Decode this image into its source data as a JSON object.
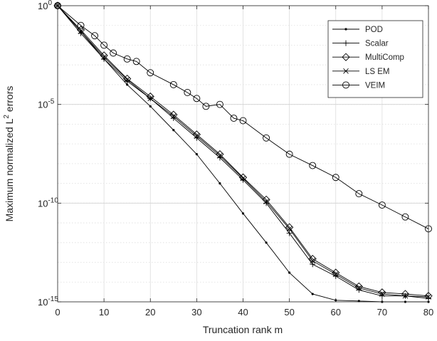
{
  "chart_data": {
    "type": "line",
    "xlabel": "Truncation rank m",
    "ylabel": "Maximum normalized L² errors",
    "ylabel_parts": {
      "pre": "Maximum normalized L",
      "sup": "2",
      "post": " errors"
    },
    "x_range": [
      0,
      80
    ],
    "y_range": [
      1e-15,
      1
    ],
    "y_scale": "log",
    "grid": true,
    "legend_position": "top-right",
    "x_ticks": [
      0,
      10,
      20,
      30,
      40,
      50,
      60,
      70,
      80
    ],
    "x_tick_labels": [
      "0",
      "10",
      "20",
      "30",
      "40",
      "50",
      "60",
      "70",
      "80"
    ],
    "y_ticks": [
      {
        "value": 1,
        "base": "10",
        "exp": "0"
      },
      {
        "value": 1e-05,
        "base": "10",
        "exp": "-5"
      },
      {
        "value": 1e-10,
        "base": "10",
        "exp": "-10"
      },
      {
        "value": 1e-15,
        "base": "10",
        "exp": "-15"
      }
    ],
    "series": [
      {
        "name": "POD",
        "marker": "dot",
        "x": [
          0,
          5,
          10,
          15,
          20,
          25,
          30,
          35,
          40,
          45,
          50,
          55,
          60,
          65,
          70,
          75,
          80
        ],
        "y": [
          1,
          0.05,
          0.002,
          0.0001,
          8e-06,
          5e-07,
          3e-08,
          1e-09,
          3e-11,
          1e-12,
          3e-14,
          2.5e-15,
          1.2e-15,
          1.1e-15,
          1e-15,
          1e-15,
          1e-15
        ]
      },
      {
        "name": "Scalar",
        "marker": "plus",
        "x": [
          0,
          5,
          10,
          15,
          20,
          25,
          30,
          35,
          40,
          45,
          50,
          55,
          60,
          65,
          70,
          75,
          80
        ],
        "y": [
          1,
          0.04,
          0.002,
          0.00015,
          2e-05,
          2e-06,
          2e-07,
          2e-08,
          1.5e-09,
          1e-10,
          3e-12,
          8e-14,
          2e-14,
          4e-15,
          2e-15,
          2e-15,
          1.5e-15
        ]
      },
      {
        "name": "MultiComp",
        "marker": "diamond",
        "x": [
          0,
          5,
          10,
          15,
          20,
          25,
          30,
          35,
          40,
          45,
          50,
          55,
          60,
          65,
          70,
          75,
          80
        ],
        "y": [
          1,
          0.06,
          0.003,
          0.0002,
          2.5e-05,
          3e-06,
          3e-07,
          3e-08,
          2e-09,
          1.5e-10,
          6e-12,
          1.5e-13,
          3e-14,
          6e-15,
          3e-15,
          2.5e-15,
          2e-15
        ]
      },
      {
        "name": "LS EM",
        "marker": "x",
        "x": [
          0,
          5,
          10,
          15,
          20,
          25,
          30,
          35,
          40,
          45,
          50,
          55,
          60,
          65,
          70,
          75,
          80
        ],
        "y": [
          1,
          0.05,
          0.0025,
          0.00018,
          2e-05,
          2.5e-06,
          2.5e-07,
          2.5e-08,
          1.8e-09,
          1.2e-10,
          5e-12,
          1.2e-13,
          2.5e-14,
          5e-15,
          2.5e-15,
          2e-15,
          1.8e-15
        ]
      },
      {
        "name": "VEIM",
        "marker": "circle",
        "x": [
          0,
          5,
          8,
          10,
          12,
          15,
          17,
          20,
          25,
          28,
          30,
          32,
          35,
          38,
          40,
          45,
          50,
          55,
          60,
          65,
          70,
          75,
          80
        ],
        "y": [
          1,
          0.1,
          0.03,
          0.01,
          0.004,
          0.002,
          0.0015,
          0.0004,
          0.0001,
          4e-05,
          2e-05,
          8e-06,
          1e-05,
          2e-06,
          1.5e-06,
          2e-07,
          3e-08,
          8e-09,
          2e-09,
          3e-10,
          8e-11,
          2e-11,
          5e-12
        ]
      }
    ]
  }
}
